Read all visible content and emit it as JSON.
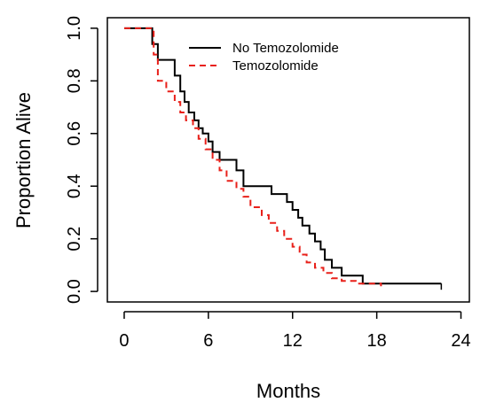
{
  "chart_data": {
    "type": "line",
    "xlabel": "Months",
    "ylabel": "Proportion Alive",
    "xlim": [
      -1.2,
      24.6
    ],
    "ylim": [
      -0.04,
      1.04
    ],
    "x_ticks": [
      0,
      6,
      12,
      18,
      24
    ],
    "y_ticks": [
      0.0,
      0.2,
      0.4,
      0.6,
      0.8,
      1.0
    ],
    "y_tick_labels": [
      "0.0",
      "0.2",
      "0.4",
      "0.6",
      "0.8",
      "1.0"
    ],
    "grid": false,
    "legend_position": "top-center",
    "series": [
      {
        "name": "No Temozolomide",
        "color": "#000000",
        "line_style": "solid",
        "x": [
          0,
          2.0,
          2.4,
          3.6,
          4.0,
          4.3,
          4.6,
          5.0,
          5.3,
          5.6,
          6.0,
          6.3,
          6.8,
          7.0,
          8.0,
          8.5,
          10.5,
          11.6,
          12.0,
          12.4,
          12.7,
          13.2,
          13.6,
          14.0,
          14.3,
          14.8,
          15.5,
          16.3,
          17.0,
          19.5,
          22.6
        ],
        "y": [
          1.0,
          0.94,
          0.88,
          0.82,
          0.76,
          0.72,
          0.68,
          0.65,
          0.62,
          0.6,
          0.57,
          0.53,
          0.5,
          0.5,
          0.46,
          0.4,
          0.37,
          0.34,
          0.31,
          0.28,
          0.25,
          0.22,
          0.19,
          0.16,
          0.12,
          0.09,
          0.06,
          0.06,
          0.03,
          0.03,
          0.03
        ]
      },
      {
        "name": "Temozolomide",
        "color": "#e8201a",
        "line_style": "dashed",
        "x": [
          0,
          2.1,
          2.4,
          3.0,
          3.6,
          4.0,
          4.4,
          4.9,
          5.3,
          5.8,
          6.3,
          6.8,
          7.3,
          8.0,
          8.5,
          9.0,
          9.8,
          10.3,
          10.9,
          11.4,
          12.0,
          12.5,
          13.0,
          13.6,
          14.2,
          14.8,
          15.5,
          16.5,
          18.3
        ],
        "y": [
          1.0,
          0.9,
          0.8,
          0.76,
          0.72,
          0.68,
          0.65,
          0.62,
          0.58,
          0.54,
          0.5,
          0.46,
          0.42,
          0.39,
          0.36,
          0.32,
          0.29,
          0.26,
          0.23,
          0.2,
          0.17,
          0.14,
          0.11,
          0.09,
          0.07,
          0.05,
          0.04,
          0.03,
          0.02
        ]
      }
    ]
  }
}
